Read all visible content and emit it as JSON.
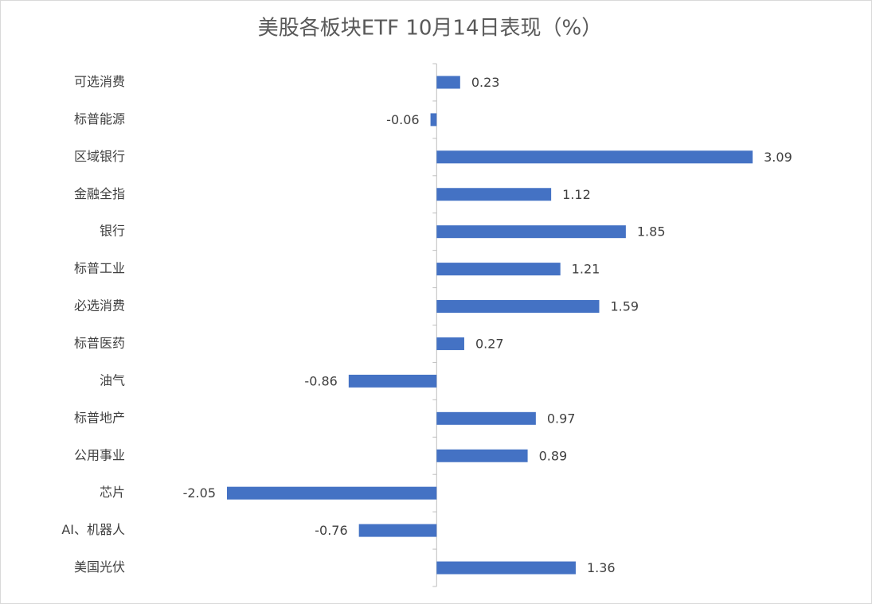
{
  "chart_data": {
    "type": "bar",
    "orientation": "horizontal",
    "title": "美股各板块ETF  10月14日表现（%）",
    "categories": [
      "可选消费",
      "标普能源",
      "区域银行",
      "金融全指",
      "银行",
      "标普工业",
      "必选消费",
      "标普医药",
      "油气",
      "标普地产",
      "公用事业",
      "芯片",
      "AI、机器人",
      "美国光伏"
    ],
    "values": [
      0.23,
      -0.06,
      3.09,
      1.12,
      1.85,
      1.21,
      1.59,
      0.27,
      -0.86,
      0.97,
      0.89,
      -2.05,
      -0.76,
      1.36
    ],
    "color": "#4472c4",
    "xlim": [
      -3,
      4
    ]
  }
}
